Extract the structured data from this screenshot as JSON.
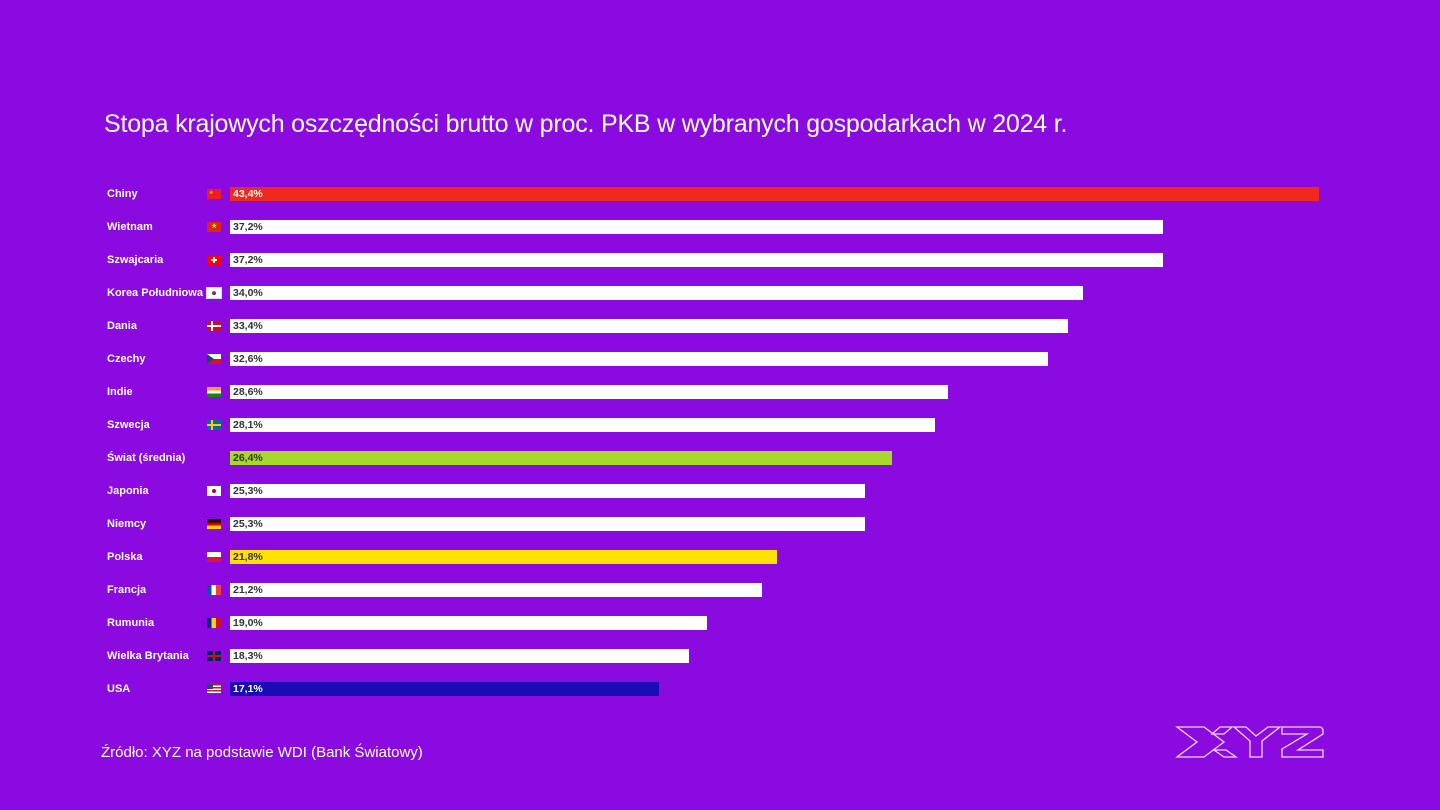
{
  "title": "Stopa krajowych oszczędności brutto w proc. PKB w wybranych gospodarkach w 2024 r.",
  "source": "Źródło: XYZ na podstawie WDI (Bank Światowy)",
  "logo_text": "XYZ",
  "colors": {
    "background": "#8a0ae0",
    "default_bar": "#ffffff",
    "china": "#f0291e",
    "world": "#a6d92b",
    "poland": "#ffe100",
    "usa": "#1a0cb5"
  },
  "chart_data": {
    "type": "bar",
    "orientation": "horizontal",
    "title": "Stopa krajowych oszczędności brutto w proc. PKB w wybranych gospodarkach w 2024 r.",
    "xlabel": "",
    "ylabel": "",
    "xlim": [
      0,
      43.4
    ],
    "grid": false,
    "categories": [
      "Chiny",
      "Wietnam",
      "Szwajcaria",
      "Korea Południowa",
      "Dania",
      "Czechy",
      "Indie",
      "Szwecja",
      "Świat (średnia)",
      "Japonia",
      "Niemcy",
      "Polska",
      "Francja",
      "Rumunia",
      "Wielka Brytania",
      "USA"
    ],
    "values": [
      43.4,
      37.2,
      37.2,
      34.0,
      33.4,
      32.6,
      28.6,
      28.1,
      26.4,
      25.3,
      25.3,
      21.8,
      21.2,
      19.0,
      18.3,
      17.1
    ],
    "value_labels": [
      "43,4%",
      "37,2%",
      "37,2%",
      "34,0%",
      "33,4%",
      "32,6%",
      "28,6%",
      "28,1%",
      "26,4%",
      "25,3%",
      "25,3%",
      "21,8%",
      "21,2%",
      "19,0%",
      "18,3%",
      "17,1%"
    ],
    "flags": [
      "cn",
      "vn",
      "ch",
      "kr",
      "dk",
      "cz",
      "in",
      "se",
      "",
      "jp",
      "de",
      "pl",
      "fr",
      "ro",
      "gb",
      "us"
    ],
    "bar_colors": [
      "#f0291e",
      "#ffffff",
      "#ffffff",
      "#ffffff",
      "#ffffff",
      "#ffffff",
      "#ffffff",
      "#ffffff",
      "#a6d92b",
      "#ffffff",
      "#ffffff",
      "#ffe100",
      "#ffffff",
      "#ffffff",
      "#ffffff",
      "#1a0cb5"
    ],
    "label_colors": [
      "#ffffff",
      "#333333",
      "#333333",
      "#333333",
      "#333333",
      "#333333",
      "#333333",
      "#333333",
      "#333333",
      "#333333",
      "#333333",
      "#333333",
      "#333333",
      "#333333",
      "#333333",
      "#ffffff"
    ]
  }
}
